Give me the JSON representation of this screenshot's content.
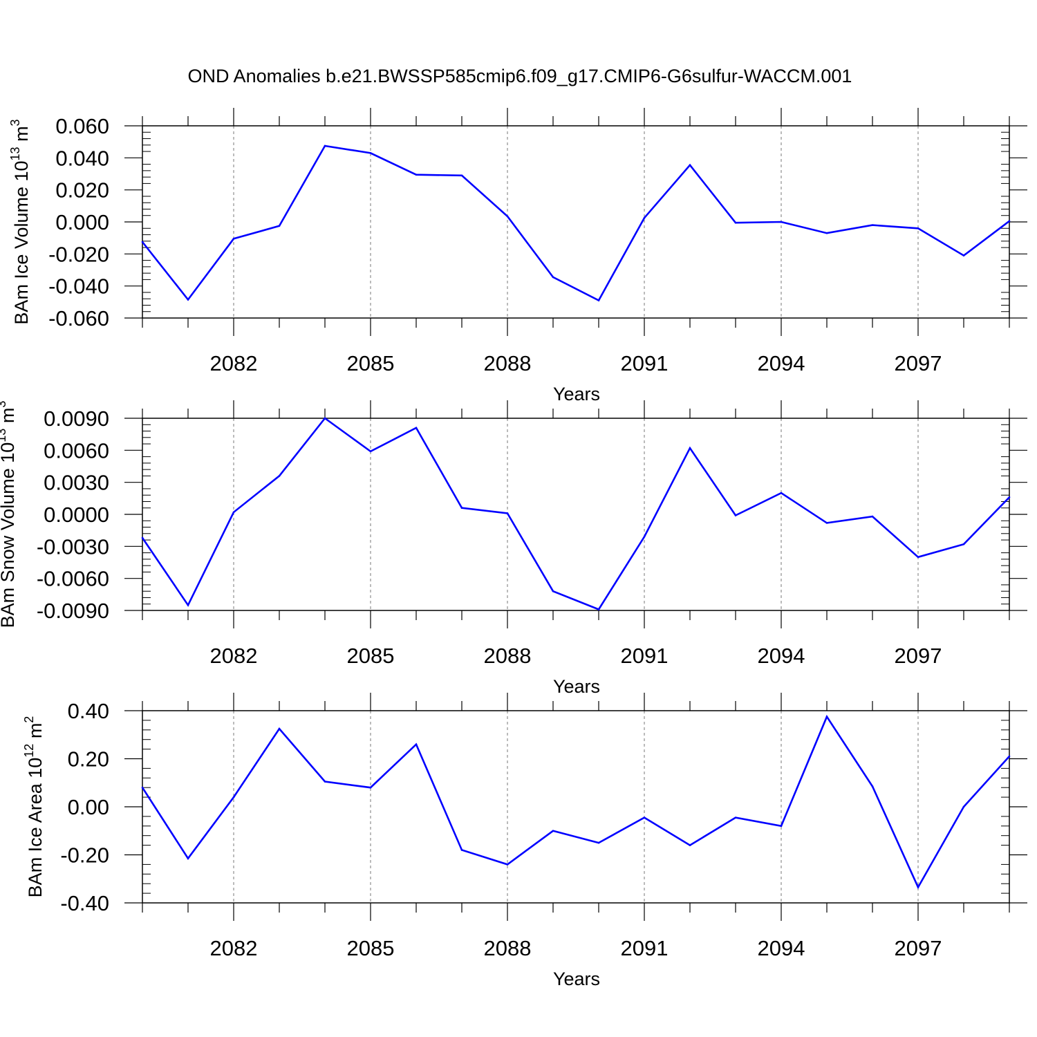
{
  "title": "OND Anomalies b.e21.BWSSP585cmip6.f09_g17.CMIP6-G6sulfur-WACCM.001",
  "colors": {
    "line": "#0000ff",
    "axis": "#000000",
    "grid": "#777777",
    "background": "#ffffff"
  },
  "chart_data": [
    {
      "type": "line",
      "title": "",
      "xlabel": "Years",
      "ylabel": "BAm Ice Volume 10",
      "ylabel_exponent": "13",
      "ylabel_unit": " m",
      "ylabel_unit_exponent": "3",
      "x": [
        2080,
        2081,
        2082,
        2083,
        2084,
        2085,
        2086,
        2087,
        2088,
        2089,
        2090,
        2091,
        2092,
        2093,
        2094,
        2095,
        2096,
        2097,
        2098,
        2099
      ],
      "xlim": [
        2080,
        2099
      ],
      "x_ticks": [
        2082,
        2085,
        2088,
        2091,
        2094,
        2097
      ],
      "x_tick_labels": [
        "2082",
        "2085",
        "2088",
        "2091",
        "2094",
        "2097"
      ],
      "x_grid": "dashed at major ticks",
      "ylim": [
        -0.06,
        0.06
      ],
      "y_ticks": [
        0.06,
        0.04,
        0.02,
        0.0,
        -0.02,
        -0.04,
        -0.06
      ],
      "y_tick_labels": [
        "0.060",
        "0.040",
        "0.020",
        "0.000",
        "-0.020",
        "-0.040",
        "-0.060"
      ],
      "series": [
        {
          "values": [
            -0.0125,
            -0.0485,
            -0.0105,
            -0.0025,
            0.0475,
            0.043,
            0.0295,
            0.029,
            0.0035,
            -0.0345,
            -0.049,
            0.0025,
            0.0355,
            -0.0005,
            0.0,
            -0.007,
            -0.002,
            -0.004,
            -0.021,
            0.0005
          ]
        }
      ]
    },
    {
      "type": "line",
      "title": "",
      "xlabel": "Years",
      "ylabel": "BAm Snow Volume 10",
      "ylabel_exponent": "13",
      "ylabel_unit": " m",
      "ylabel_unit_exponent": "3",
      "x": [
        2080,
        2081,
        2082,
        2083,
        2084,
        2085,
        2086,
        2087,
        2088,
        2089,
        2090,
        2091,
        2092,
        2093,
        2094,
        2095,
        2096,
        2097,
        2098,
        2099
      ],
      "xlim": [
        2080,
        2099
      ],
      "x_ticks": [
        2082,
        2085,
        2088,
        2091,
        2094,
        2097
      ],
      "x_tick_labels": [
        "2082",
        "2085",
        "2088",
        "2091",
        "2094",
        "2097"
      ],
      "x_grid": "dashed at major ticks",
      "ylim": [
        -0.009,
        0.009
      ],
      "y_ticks": [
        0.009,
        0.006,
        0.003,
        0.0,
        -0.003,
        -0.006,
        -0.009
      ],
      "y_tick_labels": [
        "0.0090",
        "0.0060",
        "0.0030",
        "0.0000",
        "-0.0030",
        "-0.0060",
        "-0.0090"
      ],
      "series": [
        {
          "values": [
            -0.0022,
            -0.0085,
            0.0002,
            0.0036,
            0.009,
            0.0059,
            0.0081,
            0.0006,
            0.0001,
            -0.0072,
            -0.0089,
            -0.0021,
            0.0062,
            -0.0001,
            0.002,
            -0.0008,
            -0.0002,
            -0.004,
            -0.0028,
            0.0016
          ]
        }
      ]
    },
    {
      "type": "line",
      "title": "",
      "xlabel": "Years",
      "ylabel": "BAm Ice Area 10",
      "ylabel_exponent": "12",
      "ylabel_unit": " m",
      "ylabel_unit_exponent": "2",
      "x": [
        2080,
        2081,
        2082,
        2083,
        2084,
        2085,
        2086,
        2087,
        2088,
        2089,
        2090,
        2091,
        2092,
        2093,
        2094,
        2095,
        2096,
        2097,
        2098,
        2099
      ],
      "xlim": [
        2080,
        2099
      ],
      "x_ticks": [
        2082,
        2085,
        2088,
        2091,
        2094,
        2097
      ],
      "x_tick_labels": [
        "2082",
        "2085",
        "2088",
        "2091",
        "2094",
        "2097"
      ],
      "x_grid": "dashed at major ticks",
      "ylim": [
        -0.4,
        0.4
      ],
      "y_ticks": [
        0.4,
        0.2,
        0.0,
        -0.2,
        -0.4
      ],
      "y_tick_labels": [
        "0.40",
        "0.20",
        "0.00",
        "-0.20",
        "-0.40"
      ],
      "series": [
        {
          "values": [
            0.08,
            -0.215,
            0.04,
            0.325,
            0.105,
            0.08,
            0.26,
            -0.18,
            -0.24,
            -0.1,
            -0.15,
            -0.045,
            -0.16,
            -0.045,
            -0.08,
            0.375,
            0.085,
            -0.335,
            0.0,
            0.21
          ]
        }
      ]
    }
  ]
}
